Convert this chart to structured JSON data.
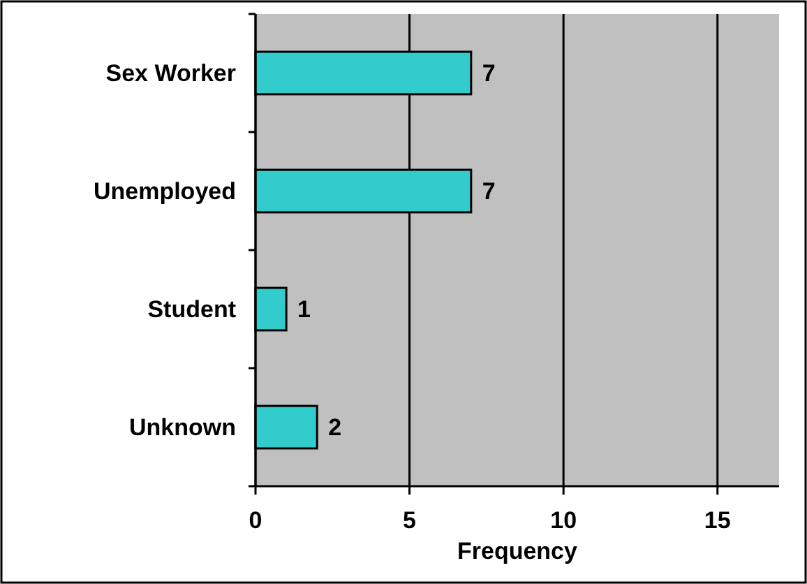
{
  "chart_data": {
    "type": "bar",
    "orientation": "horizontal",
    "xlabel": "Frequency",
    "categories": [
      "Sex Worker",
      "Unemployed",
      "Student",
      "Unknown"
    ],
    "values": [
      7,
      7,
      1,
      2
    ],
    "color": "#33cccc",
    "xlim": [
      0,
      17
    ],
    "xticks": [
      0,
      5,
      10,
      15
    ],
    "grid": "x",
    "data_labels": true
  }
}
